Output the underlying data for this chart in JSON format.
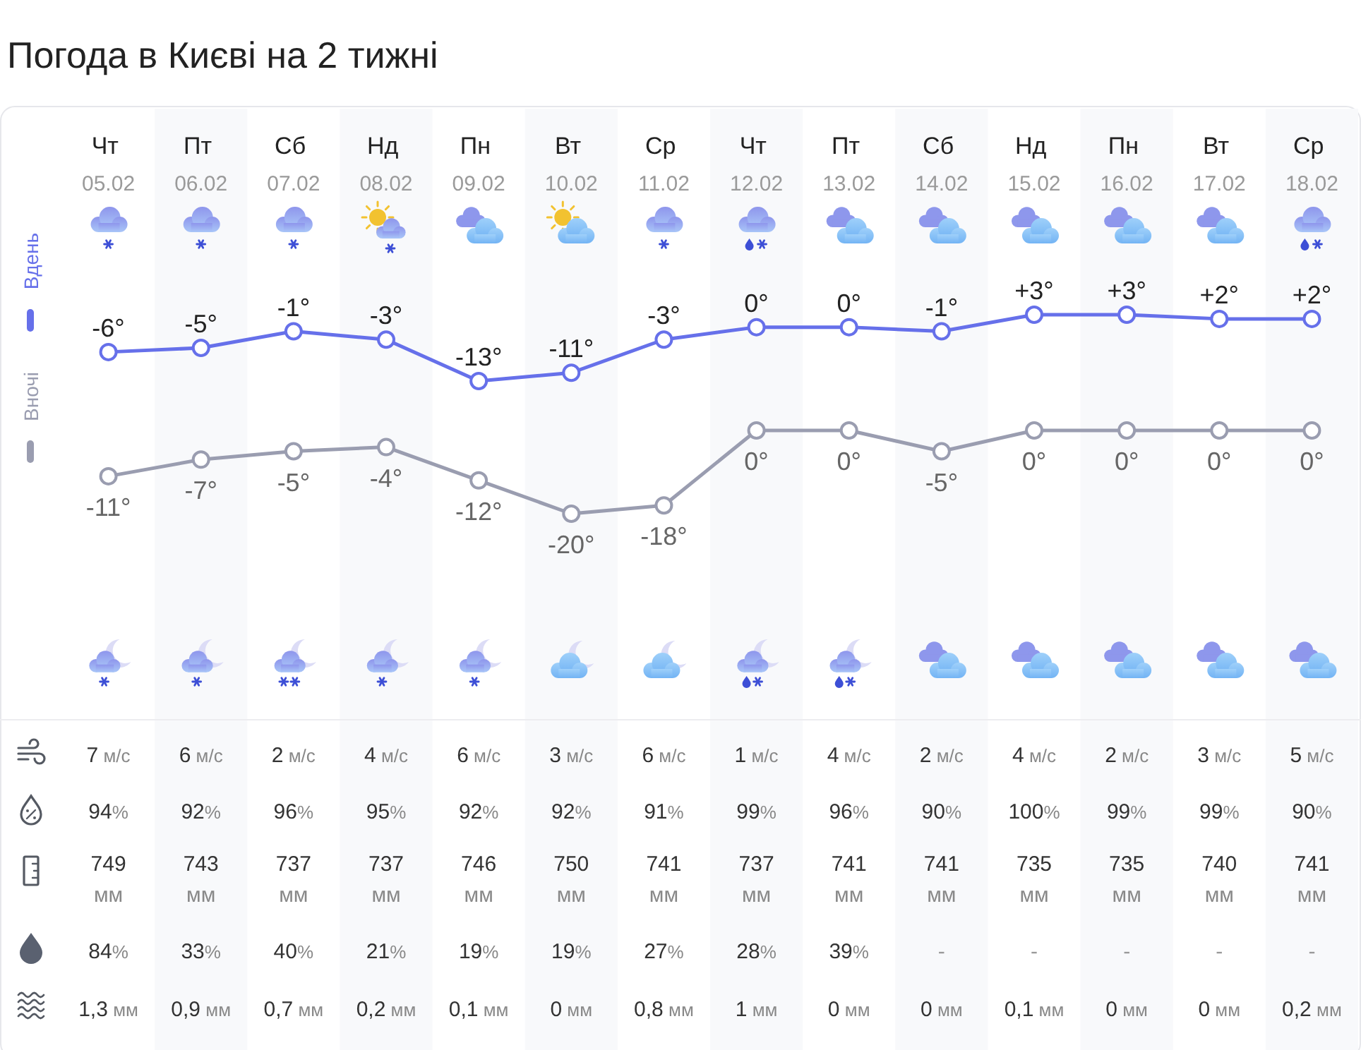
{
  "chart_data": [
    {
      "type": "line",
      "title": "Погода в Києві на 2 тижні",
      "categories": [
        "Чт 05.02",
        "Пт 06.02",
        "Сб 07.02",
        "Нд 08.02",
        "Пн 09.02",
        "Вт 10.02",
        "Ср 11.02",
        "Чт 12.02",
        "Пт 13.02",
        "Сб 14.02",
        "Нд 15.02",
        "Пн 16.02",
        "Вт 17.02",
        "Ср 18.02"
      ],
      "series": [
        {
          "name": "Вдень",
          "color": "#6670ea",
          "values": [
            -6,
            -5,
            -1,
            -3,
            -13,
            -11,
            -3,
            0,
            0,
            -1,
            3,
            3,
            2,
            2
          ],
          "value_labels": [
            "-6°",
            "-5°",
            "-1°",
            "-3°",
            "-13°",
            "-11°",
            "-3°",
            "0°",
            "0°",
            "-1°",
            "+3°",
            "+3°",
            "+2°",
            "+2°"
          ]
        }
      ],
      "legend": "left",
      "marker": "circle",
      "tick_labels": "x"
    },
    {
      "type": "line",
      "categories": [
        null,
        null,
        null,
        null,
        null,
        null,
        null,
        null,
        null,
        null,
        null,
        null,
        null,
        null
      ],
      "series": [
        {
          "name": "Вночі",
          "color": "#9a9db0",
          "values": [
            -11,
            -7,
            -5,
            -4,
            -12,
            -20,
            -18,
            0,
            0,
            -5,
            0,
            0,
            0,
            0
          ],
          "value_labels": [
            "-11°",
            "-7°",
            "-5°",
            "-4°",
            "-12°",
            "-20°",
            "-18°",
            "0°",
            "0°",
            "-5°",
            "0°",
            "0°",
            "0°",
            "0°"
          ]
        }
      ],
      "legend": "left",
      "marker": "circle"
    },
    {
      "type": "other",
      "values": [
        7,
        6,
        2,
        4,
        6,
        3,
        6,
        1,
        4,
        2,
        4,
        2,
        3,
        5
      ],
      "value_labels": [
        "7 м/с",
        "6 м/с",
        "2 м/с",
        "4 м/с",
        "6 м/с",
        "3 м/с",
        "6 м/с",
        "1 м/с",
        "4 м/с",
        "2 м/с",
        "4 м/с",
        "2 м/с",
        "3 м/с",
        "5 м/с"
      ]
    },
    {
      "type": "other",
      "values": [
        94,
        92,
        96,
        95,
        92,
        92,
        91,
        99,
        96,
        90,
        100,
        99,
        99,
        90
      ],
      "value_labels": [
        "94%",
        "92%",
        "96%",
        "95%",
        "92%",
        "92%",
        "91%",
        "99%",
        "96%",
        "90%",
        "100%",
        "99%",
        "99%",
        "90%"
      ]
    },
    {
      "type": "other",
      "values": [
        749,
        743,
        737,
        737,
        746,
        750,
        741,
        737,
        741,
        741,
        735,
        735,
        740,
        741
      ],
      "value_labels": [
        "749 мм",
        "743 мм",
        "737 мм",
        "737 мм",
        "746 мм",
        "750 мм",
        "741 мм",
        "737 мм",
        "741 мм",
        "741 мм",
        "735 мм",
        "735 мм",
        "740 мм",
        "741 мм"
      ]
    },
    {
      "type": "other",
      "values": [
        84,
        33,
        40,
        21,
        19,
        19,
        27,
        28,
        39,
        null,
        null,
        null,
        null,
        null
      ],
      "value_labels": [
        "84%",
        "33%",
        "40%",
        "21%",
        "19%",
        "19%",
        "27%",
        "28%",
        "39%",
        "-",
        "-",
        "-",
        "-",
        "-"
      ]
    },
    {
      "type": "other",
      "values": [
        1.3,
        0.9,
        0.7,
        0.2,
        0.1,
        0,
        0.8,
        1,
        0,
        0,
        0.1,
        0,
        0,
        0.2
      ],
      "value_labels": [
        "1,3 мм",
        "0,9 мм",
        "0,7 мм",
        "0,2 мм",
        "0,1 мм",
        "0 мм",
        "0,8 мм",
        "1 мм",
        "0 мм",
        "0 мм",
        "0,1 мм",
        "0 мм",
        "0 мм",
        "0,2 мм"
      ]
    }
  ]
}
